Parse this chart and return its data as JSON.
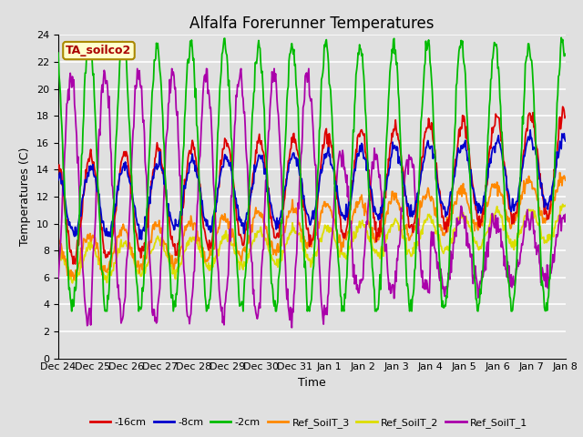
{
  "title": "Alfalfa Forerunner Temperatures",
  "ylabel": "Temperatures (C)",
  "xlabel": "Time",
  "annotation": "TA_soilco2",
  "ylim": [
    0,
    24
  ],
  "tick_labels": [
    "Dec 24",
    "Dec 25",
    "Dec 26",
    "Dec 27",
    "Dec 28",
    "Dec 29",
    "Dec 30",
    "Dec 31",
    "Jan 1",
    "Jan 2",
    "Jan 3",
    "Jan 4",
    "Jan 5",
    "Jan 6",
    "Jan 7",
    "Jan 8"
  ],
  "tick_positions": [
    0,
    1,
    2,
    3,
    4,
    5,
    6,
    7,
    8,
    9,
    10,
    11,
    12,
    13,
    14,
    15
  ],
  "lines": {
    "neg16cm": {
      "label": "-16cm",
      "color": "#dd0000",
      "lw": 1.3
    },
    "neg8cm": {
      "label": "-8cm",
      "color": "#0000cc",
      "lw": 1.3
    },
    "neg2cm": {
      "label": "-2cm",
      "color": "#00bb00",
      "lw": 1.3
    },
    "ref3": {
      "label": "Ref_SoilT_3",
      "color": "#ff8800",
      "lw": 1.3
    },
    "ref2": {
      "label": "Ref_SoilT_2",
      "color": "#dddd00",
      "lw": 1.3
    },
    "ref1": {
      "label": "Ref_SoilT_1",
      "color": "#aa00aa",
      "lw": 1.3
    }
  },
  "background_color": "#e0e0e0",
  "plot_bg_color": "#e0e0e0",
  "grid_color": "#ffffff",
  "title_fontsize": 12,
  "axis_label_fontsize": 9,
  "tick_fontsize": 8,
  "legend_fontsize": 8
}
